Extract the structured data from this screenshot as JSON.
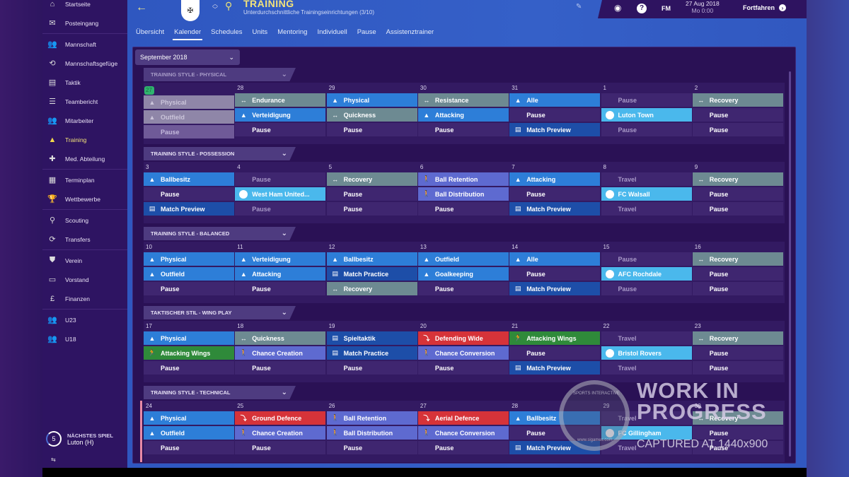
{
  "sidebar": {
    "items": [
      {
        "label": "Startseite",
        "icon": "home-icon",
        "glyph": "⌂"
      },
      {
        "label": "Posteingang",
        "icon": "inbox-icon",
        "glyph": "✉"
      },
      {
        "label": "Mannschaft",
        "icon": "squad-icon",
        "glyph": "👥"
      },
      {
        "label": "Mannschaftsgefüge",
        "icon": "dynamics-icon",
        "glyph": "⟲"
      },
      {
        "label": "Taktik",
        "icon": "tactics-icon",
        "glyph": "▤"
      },
      {
        "label": "Teambericht",
        "icon": "report-icon",
        "glyph": "☰"
      },
      {
        "label": "Mitarbeiter",
        "icon": "staff-icon",
        "glyph": "👥"
      },
      {
        "label": "Training",
        "icon": "training-cone-icon",
        "glyph": "▲",
        "active": true
      },
      {
        "label": "Med. Abteilung",
        "icon": "medical-icon",
        "glyph": "✚"
      },
      {
        "label": "Terminplan",
        "icon": "calendar-icon",
        "glyph": "▦"
      },
      {
        "label": "Wettbewerbe",
        "icon": "trophy-icon",
        "glyph": "🏆"
      },
      {
        "label": "Scouting",
        "icon": "search-icon",
        "glyph": "⚲"
      },
      {
        "label": "Transfers",
        "icon": "transfer-icon",
        "glyph": "⟳"
      },
      {
        "label": "Verein",
        "icon": "shield-icon",
        "glyph": "⛊"
      },
      {
        "label": "Vorstand",
        "icon": "briefcase-icon",
        "glyph": "▭"
      },
      {
        "label": "Finanzen",
        "icon": "money-icon",
        "glyph": "£"
      },
      {
        "label": "U23",
        "icon": "u23-icon",
        "glyph": "👥"
      },
      {
        "label": "U18",
        "icon": "u18-icon",
        "glyph": "👥"
      }
    ],
    "next_match": {
      "label": "NÄCHSTES SPIEL",
      "value": "Luton (H)",
      "days": "5"
    }
  },
  "header": {
    "title": "TRAINING",
    "subtitle": "Unterdurchschnittliche Trainingseinrichtungen (3/10)",
    "date": "27 Aug 2018",
    "time": "Mo 0:00",
    "fm_label": "FM",
    "continue_label": "Fortfahren"
  },
  "tabs": [
    {
      "label": "Übersicht"
    },
    {
      "label": "Kalender",
      "active": true
    },
    {
      "label": "Schedules"
    },
    {
      "label": "Units"
    },
    {
      "label": "Mentoring"
    },
    {
      "label": "Individuell"
    },
    {
      "label": "Pause"
    },
    {
      "label": "Assistenztrainer"
    }
  ],
  "calendar": {
    "month": "September 2018",
    "weeks": [
      {
        "style": "TRAINING STYLE - PHYSICAL",
        "days": [
          {
            "num": "27",
            "today": true,
            "sessions": [
              [
                "Physical",
                "past",
                "▲"
              ],
              [
                "Outfield",
                "past",
                "▲"
              ],
              [
                "Pause",
                "past-pause",
                ""
              ]
            ]
          },
          {
            "num": "28",
            "sessions": [
              [
                "Endurance",
                "recovery",
                "↔"
              ],
              [
                "Verteidigung",
                "physical",
                "▲"
              ],
              [
                "Pause",
                "pause",
                ""
              ]
            ]
          },
          {
            "num": "29",
            "sessions": [
              [
                "Physical",
                "physical",
                "▲"
              ],
              [
                "Quickness",
                "recovery",
                "↔"
              ],
              [
                "Pause",
                "pause",
                ""
              ]
            ]
          },
          {
            "num": "30",
            "sessions": [
              [
                "Resistance",
                "recovery",
                "↔"
              ],
              [
                "Attacking",
                "physical",
                "▲"
              ],
              [
                "Pause",
                "pause",
                ""
              ]
            ]
          },
          {
            "num": "31",
            "sessions": [
              [
                "Alle",
                "physical",
                "▲"
              ],
              [
                "Pause",
                "pause",
                ""
              ],
              [
                "Match Preview",
                "tactic",
                "▤"
              ]
            ]
          },
          {
            "num": "1",
            "sessions": [
              [
                "Pause",
                "pause-dim",
                ""
              ],
              [
                "Luton Town",
                "match",
                "●"
              ],
              [
                "Pause",
                "pause-dim",
                ""
              ]
            ]
          },
          {
            "num": "2",
            "sessions": [
              [
                "Recovery",
                "recovery",
                "↔"
              ],
              [
                "Pause",
                "pause",
                ""
              ],
              [
                "Pause",
                "pause",
                ""
              ]
            ]
          }
        ]
      },
      {
        "style": "TRAINING STYLE - POSSESSION",
        "days": [
          {
            "num": "3",
            "sessions": [
              [
                "Ballbesitz",
                "physical",
                "▲"
              ],
              [
                "Pause",
                "pause",
                ""
              ],
              [
                "Match Preview",
                "tactic",
                "▤"
              ]
            ]
          },
          {
            "num": "4",
            "sessions": [
              [
                "Pause",
                "pause-dim",
                ""
              ],
              [
                "West Ham United...",
                "match",
                "●"
              ],
              [
                "Pause",
                "pause-dim",
                ""
              ]
            ]
          },
          {
            "num": "5",
            "sessions": [
              [
                "Recovery",
                "recovery",
                "↔"
              ],
              [
                "Pause",
                "pause",
                ""
              ],
              [
                "Pause",
                "pause",
                ""
              ]
            ]
          },
          {
            "num": "6",
            "sessions": [
              [
                "Ball Retention",
                "technical",
                "🚶"
              ],
              [
                "Ball Distribution",
                "technical",
                "🚶"
              ],
              [
                "Pause",
                "pause",
                ""
              ]
            ]
          },
          {
            "num": "7",
            "sessions": [
              [
                "Attacking",
                "physical",
                "▲"
              ],
              [
                "Pause",
                "pause",
                ""
              ],
              [
                "Match Preview",
                "tactic",
                "▤"
              ]
            ]
          },
          {
            "num": "8",
            "sessions": [
              [
                "Travel",
                "pause-dim",
                ""
              ],
              [
                "FC Walsall",
                "match",
                "●"
              ],
              [
                "Travel",
                "pause-dim",
                ""
              ]
            ]
          },
          {
            "num": "9",
            "sessions": [
              [
                "Recovery",
                "recovery",
                "↔"
              ],
              [
                "Pause",
                "pause",
                ""
              ],
              [
                "Pause",
                "pause",
                ""
              ]
            ]
          }
        ]
      },
      {
        "style": "TRAINING STYLE - BALANCED",
        "days": [
          {
            "num": "10",
            "sessions": [
              [
                "Physical",
                "physical",
                "▲"
              ],
              [
                "Outfield",
                "physical",
                "▲"
              ],
              [
                "Pause",
                "pause",
                ""
              ]
            ]
          },
          {
            "num": "11",
            "sessions": [
              [
                "Verteidigung",
                "physical",
                "▲"
              ],
              [
                "Attacking",
                "physical",
                "▲"
              ],
              [
                "Pause",
                "pause",
                ""
              ]
            ]
          },
          {
            "num": "12",
            "sessions": [
              [
                "Ballbesitz",
                "physical",
                "▲"
              ],
              [
                "Match Practice",
                "tactic",
                "▤"
              ],
              [
                "Recovery",
                "recovery",
                "↔"
              ]
            ]
          },
          {
            "num": "13",
            "sessions": [
              [
                "Outfield",
                "physical",
                "▲"
              ],
              [
                "Goalkeeping",
                "physical",
                "▲"
              ],
              [
                "Pause",
                "pause",
                ""
              ]
            ]
          },
          {
            "num": "14",
            "sessions": [
              [
                "Alle",
                "physical",
                "▲"
              ],
              [
                "Pause",
                "pause",
                ""
              ],
              [
                "Match Preview",
                "tactic",
                "▤"
              ]
            ]
          },
          {
            "num": "15",
            "sessions": [
              [
                "Pause",
                "pause-dim",
                ""
              ],
              [
                "AFC Rochdale",
                "match",
                "●"
              ],
              [
                "Pause",
                "pause-dim",
                ""
              ]
            ]
          },
          {
            "num": "16",
            "sessions": [
              [
                "Recovery",
                "recovery",
                "↔"
              ],
              [
                "Pause",
                "pause",
                ""
              ],
              [
                "Pause",
                "pause",
                ""
              ]
            ]
          }
        ]
      },
      {
        "style": "TAKTISCHER STIL - WING PLAY",
        "days": [
          {
            "num": "17",
            "sessions": [
              [
                "Physical",
                "physical",
                "▲"
              ],
              [
                "Attacking Wings",
                "attacking",
                "🏃"
              ],
              [
                "Pause",
                "pause",
                ""
              ]
            ]
          },
          {
            "num": "18",
            "sessions": [
              [
                "Quickness",
                "recovery",
                "↔"
              ],
              [
                "Chance Creation",
                "technical",
                "🚶"
              ],
              [
                "Pause",
                "pause",
                ""
              ]
            ]
          },
          {
            "num": "19",
            "sessions": [
              [
                "Spieltaktik",
                "tactic",
                "▤"
              ],
              [
                "Match Practice",
                "tactic",
                "▤"
              ],
              [
                "Pause",
                "pause",
                ""
              ]
            ]
          },
          {
            "num": "20",
            "sessions": [
              [
                "Defending Wide",
                "defending",
                "⤵"
              ],
              [
                "Chance Conversion",
                "technical",
                "🚶"
              ],
              [
                "Pause",
                "pause",
                ""
              ]
            ]
          },
          {
            "num": "21",
            "sessions": [
              [
                "Attacking Wings",
                "attacking",
                "🏃"
              ],
              [
                "Pause",
                "pause",
                ""
              ],
              [
                "Match Preview",
                "tactic",
                "▤"
              ]
            ]
          },
          {
            "num": "22",
            "sessions": [
              [
                "Travel",
                "pause-dim",
                ""
              ],
              [
                "Bristol Rovers",
                "match",
                "●"
              ],
              [
                "Travel",
                "pause-dim",
                ""
              ]
            ]
          },
          {
            "num": "23",
            "sessions": [
              [
                "Recovery",
                "recovery",
                "↔"
              ],
              [
                "Pause",
                "pause",
                ""
              ],
              [
                "Pause",
                "pause",
                ""
              ]
            ]
          }
        ]
      },
      {
        "style": "TRAINING STYLE - TECHNICAL",
        "days": [
          {
            "num": "24",
            "sessions": [
              [
                "Physical",
                "physical",
                "▲"
              ],
              [
                "Outfield",
                "physical",
                "▲"
              ],
              [
                "Pause",
                "pause",
                ""
              ]
            ]
          },
          {
            "num": "25",
            "sessions": [
              [
                "Ground Defence",
                "defending",
                "⤵"
              ],
              [
                "Chance Creation",
                "technical",
                "🚶"
              ],
              [
                "Pause",
                "pause",
                ""
              ]
            ]
          },
          {
            "num": "26",
            "sessions": [
              [
                "Ball Retention",
                "technical",
                "🚶"
              ],
              [
                "Ball Distribution",
                "technical",
                "🚶"
              ],
              [
                "Pause",
                "pause",
                ""
              ]
            ]
          },
          {
            "num": "27",
            "sessions": [
              [
                "Aerial Defence",
                "defending",
                "⤵"
              ],
              [
                "Chance Conversion",
                "technical",
                "🚶"
              ],
              [
                "Pause",
                "pause",
                ""
              ]
            ]
          },
          {
            "num": "28",
            "sessions": [
              [
                "Ballbesitz",
                "physical",
                "▲"
              ],
              [
                "Pause",
                "pause",
                ""
              ],
              [
                "Match Preview",
                "tactic",
                "▤"
              ]
            ]
          },
          {
            "num": "29",
            "sessions": [
              [
                "Travel",
                "pause-dim",
                ""
              ],
              [
                "FC Gillingham",
                "match",
                "●"
              ],
              [
                "Travel",
                "pause-dim",
                ""
              ]
            ]
          },
          {
            "num": "30",
            "sessions": [
              [
                "Recovery",
                "recovery",
                "↔"
              ],
              [
                "Pause",
                "pause",
                ""
              ],
              [
                "Pause",
                "pause",
                ""
              ]
            ]
          }
        ]
      }
    ]
  },
  "watermark": {
    "line1": "WORK IN",
    "line2": "PROGRESS",
    "line3": "CAPTURED AT 1440x900",
    "seal_top": "SPORTS INTERACTIVE",
    "seal_bottom": "www.sigames.com"
  }
}
